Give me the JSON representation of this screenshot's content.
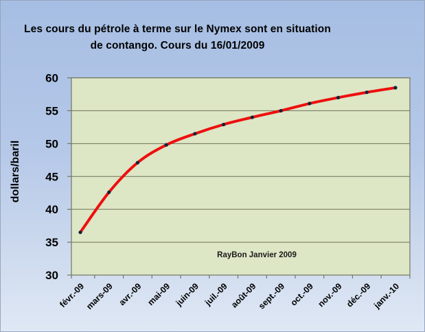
{
  "chart_data": {
    "type": "line",
    "title": "Les cours du pétrole à terme sur le Nymex sont en situation de contango. Cours du 16/01/2009",
    "ylabel": "dollars/baril",
    "xlabel": "",
    "categories": [
      "févr.-09",
      "mars-09",
      "avr.-09",
      "mai-09",
      "juin-09",
      "juil.-09",
      "août-09",
      "sept.-09",
      "oct.-09",
      "nov.-09",
      "déc.-09",
      "janv.-10"
    ],
    "values": [
      36.5,
      42.6,
      47.1,
      49.8,
      51.5,
      52.9,
      54.0,
      55.0,
      56.1,
      57.0,
      57.8,
      58.5
    ],
    "ylim": [
      30,
      60
    ],
    "ytick_step": 5,
    "yticks": [
      30,
      35,
      40,
      45,
      50,
      55,
      60
    ],
    "grid": true,
    "legend_position": "none",
    "annotation": "RayBon Janvier 2009",
    "line_smooth": true
  },
  "colors": {
    "outer_bg_top": "#a6bee3",
    "outer_bg_bottom": "#dfe8f5",
    "plot_bg": "#dde6c5",
    "grid": "#6d7258",
    "axis": "#71765f",
    "line": "#ee0f0f",
    "marker": "#0f2438",
    "text": "#000000",
    "frame_border": "#96a4bd"
  }
}
